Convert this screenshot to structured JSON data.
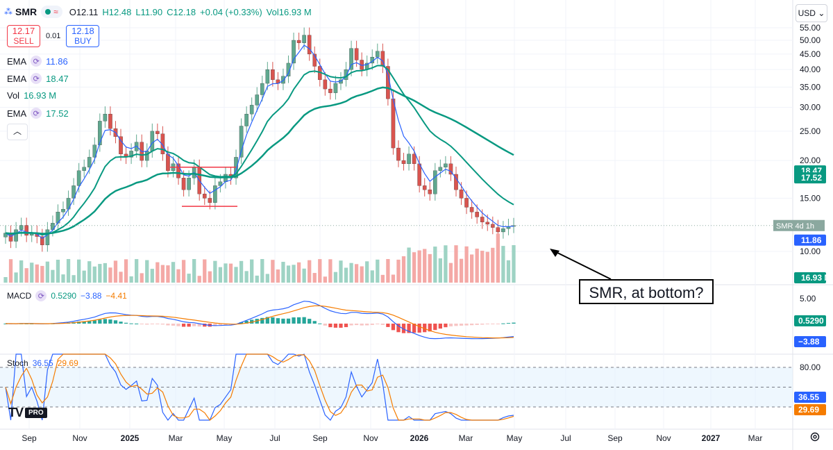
{
  "header": {
    "symbol": "SMR",
    "open": "O12.11",
    "high": "H12.48",
    "low": "L11.90",
    "close": "C12.18",
    "change": "+0.04 (+0.33%)",
    "volume": "Vol16.93 M"
  },
  "trade": {
    "sell_price": "12.17",
    "sell_label": "SELL",
    "spread": "0.01",
    "buy_price": "12.18",
    "buy_label": "BUY"
  },
  "indicators": [
    {
      "name": "EMA",
      "value": "11.86",
      "color": "#2962ff"
    },
    {
      "name": "EMA",
      "value": "18.47",
      "color": "#089981"
    },
    {
      "name": "Vol",
      "value": "16.93 M",
      "color": "#089981"
    },
    {
      "name": "EMA",
      "value": "17.52",
      "color": "#089981"
    }
  ],
  "currency": "USD",
  "annotation": "SMR, at bottom?",
  "macd_legend": {
    "name": "MACD",
    "v1": "0.5290",
    "v2": "−3.88",
    "v3": "−4.41"
  },
  "stoch_legend": {
    "name": "Stoch",
    "k": "36.55",
    "d": "29.69"
  },
  "logo": {
    "mark": "TV",
    "badge": "PRO"
  },
  "price_badges": [
    {
      "label": "18.47",
      "color": "#089981"
    },
    {
      "label": "17.52",
      "color": "#089981"
    },
    {
      "label": "SMR",
      "sub": "4d 1h",
      "color": "#8ba89f"
    },
    {
      "label": "11.86",
      "color": "#2962ff"
    },
    {
      "label": "16.93 M",
      "color": "#089981"
    }
  ],
  "macd_badges": [
    {
      "label": "0.5290",
      "color": "#089981"
    },
    {
      "label": "−3.88",
      "color": "#2962ff"
    }
  ],
  "stoch_badges": [
    {
      "label": "36.55",
      "color": "#2962ff"
    },
    {
      "label": "29.69",
      "color": "#f57c00"
    }
  ],
  "chart_data": {
    "type": "candlestick",
    "price_axis_ticks": [
      "55.00",
      "50.00",
      "45.00",
      "40.00",
      "35.00",
      "30.00",
      "25.00",
      "20.00",
      "15.00",
      "10.00"
    ],
    "price_axis_log": true,
    "x_ticks": [
      "Sep",
      "Nov",
      "2025",
      "Mar",
      "May",
      "Jul",
      "Sep",
      "Nov",
      "2026",
      "Mar",
      "May",
      "Jul",
      "Sep",
      "Nov",
      "2027",
      "Mar"
    ],
    "closes": [
      11.5,
      10.8,
      11.8,
      12.2,
      11.3,
      11.5,
      11.2,
      10.5,
      11.8,
      12.4,
      13.5,
      13.8,
      15.0,
      16.5,
      18.5,
      19.0,
      20.5,
      22.5,
      27.0,
      28.5,
      25.5,
      24.0,
      21.0,
      20.5,
      21.5,
      23.0,
      20.0,
      21.5,
      25.0,
      24.5,
      21.0,
      18.5,
      19.5,
      17.5,
      16.0,
      17.5,
      19.0,
      15.5,
      15.0,
      14.5,
      16.5,
      17.0,
      18.0,
      17.5,
      20.5,
      26.0,
      28.5,
      30.5,
      33.0,
      36.0,
      40.0,
      37.0,
      36.0,
      38.0,
      42.0,
      50.0,
      49.0,
      52.0,
      45.0,
      41.0,
      37.0,
      34.5,
      33.5,
      36.0,
      37.0,
      40.0,
      47.0,
      43.0,
      40.0,
      42.0,
      44.0,
      46.0,
      41.0,
      32.0,
      22.0,
      20.0,
      19.5,
      21.0,
      19.5,
      16.5,
      16.0,
      15.5,
      18.5,
      19.0,
      19.5,
      18.0,
      16.0,
      15.0,
      14.0,
      13.5,
      13.0,
      12.5,
      12.3,
      12.0,
      11.6,
      11.9,
      12.1,
      12.18
    ],
    "volume_note": "per-candle volume bars, last 16.93 M",
    "ema_short_last": 11.86,
    "ema_mid_last": 17.52,
    "ema_long_last": 18.47,
    "horizontal_lines": [
      {
        "price": 19.0,
        "color": "#f23645"
      },
      {
        "price": 14.1,
        "color": "#f23645"
      }
    ],
    "macd": {
      "macd_last": 0.529,
      "signal_last": -3.88,
      "hist_last": -4.41,
      "axis_ticks": [
        "5.00"
      ]
    },
    "stoch": {
      "k_last": 36.55,
      "d_last": 29.69,
      "axis_ticks": [
        "80.00"
      ],
      "bands": [
        80,
        50,
        20
      ]
    }
  }
}
